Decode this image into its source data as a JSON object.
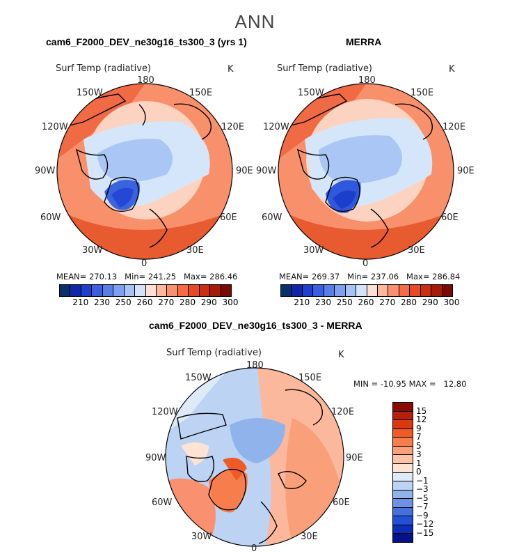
{
  "title": "ANN",
  "panels": [
    {
      "heading": "cam6_F2000_DEV_ne30g16_ts300_3 (yrs 1)",
      "variable": "Surf Temp (radiative)",
      "units": "K",
      "stats": "MEAN= 270.13   Min= 241.25   Max= 286.46",
      "lon_labels": {
        "n": "180",
        "ne": "150E",
        "e1": "120E",
        "e": "90E",
        "se1": "60E",
        "se": "30E",
        "s": "0",
        "sw": "30W",
        "sw1": "60W",
        "w": "90W",
        "nw1": "120W",
        "nw": "150W"
      }
    },
    {
      "heading": "MERRA",
      "variable": "Surf Temp (radiative)",
      "units": "K",
      "stats": "MEAN= 269.37   Min= 237.06   Max= 286.84",
      "lon_labels": {
        "n": "180",
        "ne": "150E",
        "e1": "120E",
        "e": "90E",
        "se1": "60E",
        "se": "30E",
        "s": "0",
        "sw": "30W",
        "sw1": "60W",
        "w": "90W",
        "nw1": "120W",
        "nw": "150W"
      }
    },
    {
      "heading": "cam6_F2000_DEV_ne30g16_ts300_3 - MERRA",
      "variable": "Surf Temp (radiative)",
      "units": "K",
      "stats": "MIN = -10.95 MAX =   12.80",
      "lon_labels": {
        "n": "180",
        "ne": "150E",
        "e1": "120E",
        "e": "90E",
        "se1": "60E",
        "se": "30E",
        "s": "0",
        "sw": "30W",
        "sw1": "60W",
        "w": "90W",
        "nw1": "120W",
        "nw": "150W"
      }
    }
  ],
  "abs_colorbar": {
    "colors": [
      "#08306b",
      "#1126a8",
      "#1f3fd0",
      "#3a5fe0",
      "#5a7ee8",
      "#7f9ff0",
      "#a7c3f5",
      "#d2e3fa",
      "#fde0d2",
      "#fbb89c",
      "#f99170",
      "#f56b45",
      "#e84a22",
      "#c92f10",
      "#a51c08",
      "#7a0a04"
    ],
    "ticks": [
      "210",
      "230",
      "250",
      "260",
      "270",
      "280",
      "290",
      "300"
    ]
  },
  "diff_colorbar": {
    "colors": [
      "#8b0a02",
      "#b81f0a",
      "#d9390f",
      "#f05a25",
      "#f77e4c",
      "#f9a07a",
      "#fbc4a8",
      "#fde3d3",
      "#dfeaf8",
      "#bcd3f3",
      "#91b3ec",
      "#6b92e6",
      "#4570e0",
      "#2350d6",
      "#0d2db8",
      "#05128a"
    ],
    "ticks": [
      "15",
      "12",
      "9",
      "7",
      "5",
      "3",
      "1",
      "0",
      "−1",
      "−3",
      "−5",
      "−7",
      "−9",
      "−12",
      "−15"
    ]
  }
}
